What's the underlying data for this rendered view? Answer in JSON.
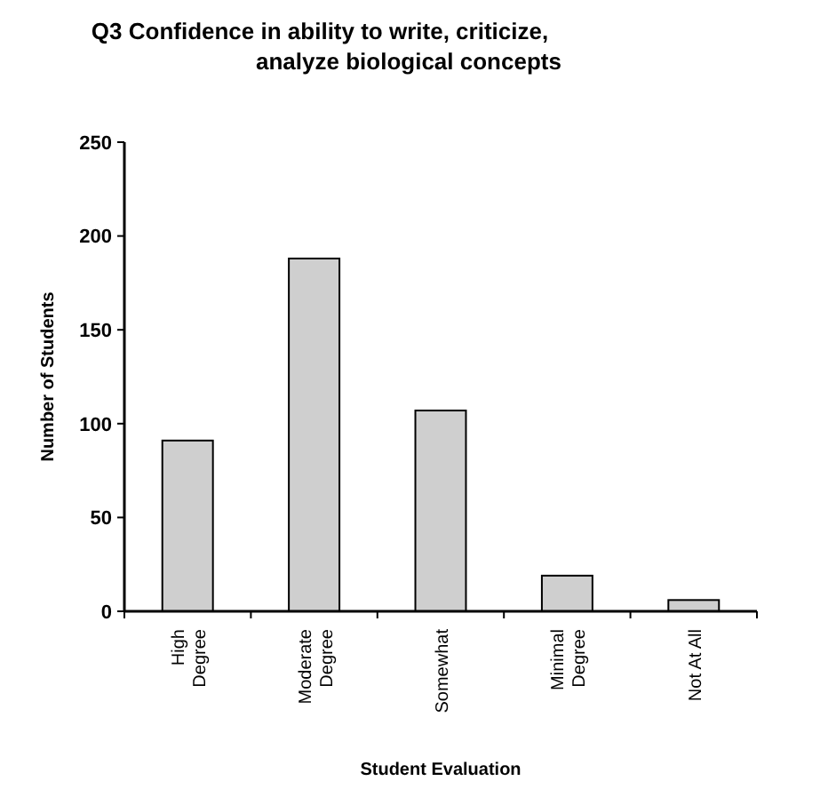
{
  "chart_data": {
    "type": "bar",
    "title": "Q3 Confidence in ability to write, criticize,\nanalyze biological concepts",
    "xlabel": "Student Evaluation",
    "ylabel": "Number of Students",
    "categories": [
      "High\nDegree",
      "Moderate\nDegree",
      "Somewhat",
      "Minimal\nDegree",
      "Not At All"
    ],
    "values": [
      91,
      188,
      107,
      19,
      6
    ],
    "color": "#cfcfcf",
    "ylim": [
      0,
      250
    ],
    "yticks": [
      0,
      50,
      100,
      150,
      200,
      250
    ],
    "grid": false
  }
}
